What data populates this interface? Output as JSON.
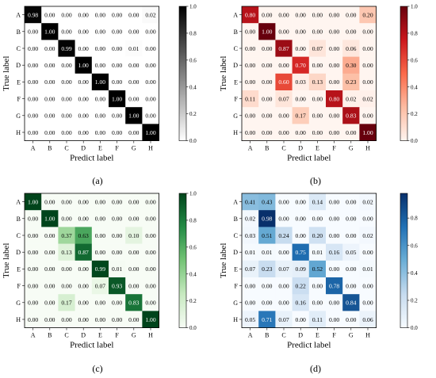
{
  "figure": {
    "panels": [
      "(a)",
      "(b)",
      "(c)",
      "(d)"
    ]
  },
  "chart_data": [
    {
      "type": "heatmap",
      "panel": "(a)",
      "colormap": "gray_r",
      "xlabel": "Predict label",
      "ylabel": "True label",
      "x_ticks": [
        "A",
        "B",
        "C",
        "D",
        "E",
        "F",
        "G",
        "H"
      ],
      "y_ticks": [
        "A",
        "B",
        "C",
        "D",
        "E",
        "F",
        "G",
        "H"
      ],
      "colorbar_ticks": [
        "0.0",
        "0.2",
        "0.4",
        "0.6",
        "0.8",
        "1.0"
      ],
      "vmin": 0,
      "vmax": 1,
      "values": [
        [
          0.98,
          0.0,
          0.0,
          0.0,
          0.0,
          0.0,
          0.0,
          0.02
        ],
        [
          0.0,
          1.0,
          0.0,
          0.0,
          0.0,
          0.0,
          0.0,
          0.0
        ],
        [
          0.0,
          0.0,
          0.99,
          0.0,
          0.0,
          0.0,
          0.01,
          0.0
        ],
        [
          0.0,
          0.0,
          0.0,
          1.0,
          0.0,
          0.0,
          0.0,
          0.0
        ],
        [
          0.0,
          0.0,
          0.0,
          0.0,
          1.0,
          0.0,
          0.0,
          0.0
        ],
        [
          0.0,
          0.0,
          0.0,
          0.0,
          0.0,
          1.0,
          0.0,
          0.0
        ],
        [
          0.0,
          0.0,
          0.0,
          0.0,
          0.0,
          0.0,
          1.0,
          0.0
        ],
        [
          0.0,
          0.0,
          0.0,
          0.0,
          0.0,
          0.0,
          0.0,
          1.0
        ]
      ]
    },
    {
      "type": "heatmap",
      "panel": "(b)",
      "colormap": "Reds",
      "xlabel": "Predict label",
      "ylabel": "True label",
      "x_ticks": [
        "A",
        "B",
        "C",
        "D",
        "E",
        "F",
        "G",
        "H"
      ],
      "y_ticks": [
        "A",
        "B",
        "C",
        "D",
        "E",
        "F",
        "G",
        "H"
      ],
      "colorbar_ticks": [
        "0.0",
        "0.2",
        "0.4",
        "0.6",
        "0.8",
        "1.0"
      ],
      "vmin": 0,
      "vmax": 1,
      "values": [
        [
          0.8,
          0.0,
          0.0,
          0.0,
          0.0,
          0.0,
          0.0,
          0.2
        ],
        [
          0.0,
          1.0,
          0.0,
          0.0,
          0.0,
          0.0,
          0.0,
          0.0
        ],
        [
          0.0,
          0.0,
          0.87,
          0.0,
          0.07,
          0.0,
          0.06,
          0.0
        ],
        [
          0.0,
          0.0,
          0.0,
          0.7,
          0.0,
          0.0,
          0.3,
          0.0
        ],
        [
          0.0,
          0.0,
          0.6,
          0.03,
          0.13,
          0.0,
          0.23,
          0.0
        ],
        [
          0.11,
          0.0,
          0.07,
          0.0,
          0.0,
          0.8,
          0.02,
          0.02
        ],
        [
          0.0,
          0.0,
          0.0,
          0.17,
          0.0,
          0.0,
          0.83,
          0.0
        ],
        [
          0.0,
          0.0,
          0.0,
          0.0,
          0.0,
          0.0,
          0.0,
          1.0
        ]
      ]
    },
    {
      "type": "heatmap",
      "panel": "(c)",
      "colormap": "Greens",
      "xlabel": "Predict label",
      "ylabel": "True label",
      "x_ticks": [
        "A",
        "B",
        "C",
        "D",
        "E",
        "F",
        "G",
        "H"
      ],
      "y_ticks": [
        "A",
        "B",
        "C",
        "D",
        "E",
        "F",
        "G",
        "H"
      ],
      "colorbar_ticks": [
        "0.0",
        "0.2",
        "0.4",
        "0.6",
        "0.8",
        "1.0"
      ],
      "vmin": 0,
      "vmax": 1,
      "values": [
        [
          1.0,
          0.0,
          0.0,
          0.0,
          0.0,
          0.0,
          0.0,
          0.0
        ],
        [
          0.0,
          1.0,
          0.0,
          0.0,
          0.0,
          0.0,
          0.0,
          0.0
        ],
        [
          0.0,
          0.0,
          0.37,
          0.63,
          0.0,
          0.0,
          0.1,
          0.0
        ],
        [
          0.0,
          0.0,
          0.13,
          0.87,
          0.0,
          0.0,
          0.0,
          0.0
        ],
        [
          0.0,
          0.0,
          0.0,
          0.0,
          0.99,
          0.01,
          0.0,
          0.0
        ],
        [
          0.0,
          0.0,
          0.0,
          0.0,
          0.07,
          0.93,
          0.0,
          0.0
        ],
        [
          0.0,
          0.0,
          0.17,
          0.0,
          0.0,
          0.0,
          0.83,
          0.0
        ],
        [
          0.0,
          0.0,
          0.0,
          0.0,
          0.0,
          0.0,
          0.0,
          1.0
        ]
      ]
    },
    {
      "type": "heatmap",
      "panel": "(d)",
      "colormap": "Blues",
      "xlabel": "Predict label",
      "ylabel": "True label",
      "x_ticks": [
        "A",
        "B",
        "C",
        "D",
        "E",
        "F",
        "G",
        "H"
      ],
      "y_ticks": [
        "A",
        "B",
        "C",
        "D",
        "E",
        "F",
        "G",
        "H"
      ],
      "colorbar_ticks": [
        "0.0",
        "0.2",
        "0.4",
        "0.6",
        "0.8"
      ],
      "vmin": 0,
      "vmax": 0.98,
      "values": [
        [
          0.41,
          0.43,
          0.0,
          0.0,
          0.14,
          0.0,
          0.0,
          0.02
        ],
        [
          0.02,
          0.98,
          0.0,
          0.0,
          0.0,
          0.0,
          0.0,
          0.0
        ],
        [
          0.03,
          0.51,
          0.24,
          0.0,
          0.2,
          0.0,
          0.0,
          0.02
        ],
        [
          0.01,
          0.01,
          0.0,
          0.75,
          0.01,
          0.16,
          0.05,
          0.0
        ],
        [
          0.07,
          0.23,
          0.07,
          0.09,
          0.52,
          0.0,
          0.0,
          0.01
        ],
        [
          0.0,
          0.0,
          0.0,
          0.22,
          0.0,
          0.78,
          0.0,
          0.0
        ],
        [
          0.0,
          0.0,
          0.0,
          0.16,
          0.0,
          0.0,
          0.84,
          0.0
        ],
        [
          0.05,
          0.71,
          0.07,
          0.0,
          0.11,
          0.0,
          0.0,
          0.06
        ]
      ]
    }
  ]
}
